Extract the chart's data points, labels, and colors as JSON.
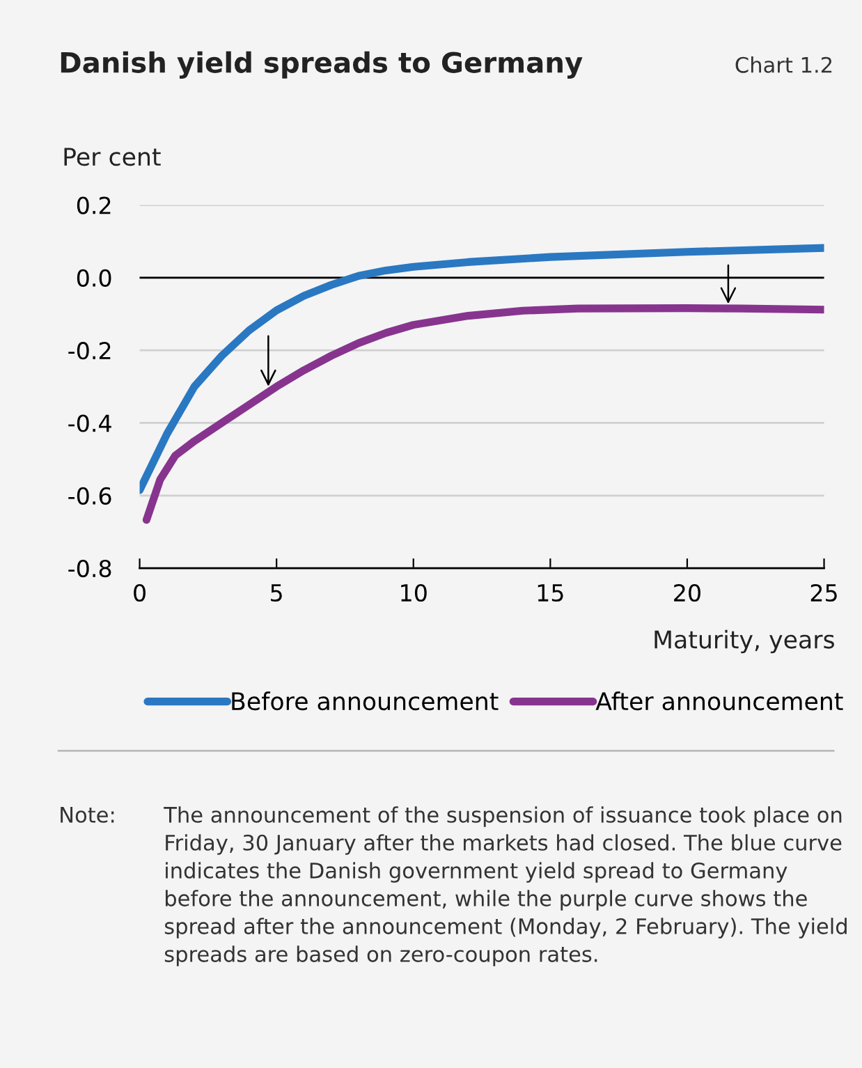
{
  "chart_data": {
    "type": "line",
    "title": "Danish yield spreads to Germany",
    "ylabel": "Per cent",
    "xlabel": "Maturity, years",
    "annotations": [
      "Chart 1.2",
      "Note: The announcement of the suspension of issuance took place on Friday, 30 January after the markets had closed. The blue curve indicates the Danish government yield spread to Germany before the announcement, while the purple curve shows the spread after the announcement (Monday, 2 February). The yield spreads are based on zero-coupon rates."
    ],
    "xlim": [
      0,
      25
    ],
    "xticks": [
      0,
      5,
      10,
      15,
      20,
      25
    ],
    "ylim": [
      -0.8,
      0.2
    ],
    "yticks": [
      {
        "value": 0.2,
        "label": "0.2"
      },
      {
        "value": 0.0,
        "label": "0.0"
      },
      {
        "value": -0.2,
        "label": "-0.2"
      },
      {
        "value": -0.4,
        "label": "-0.4"
      },
      {
        "value": -0.6,
        "label": "-0.6"
      },
      {
        "value": -0.8,
        "label": "-0.8"
      }
    ],
    "grid": "y",
    "legend": "bottom",
    "marker": "none",
    "line_style": "solid",
    "ref_lines": [
      {
        "axis": "y",
        "value": 0,
        "label": null,
        "color": "#000000"
      }
    ],
    "series": [
      {
        "name": "Before announcement",
        "color": "#2a78c2",
        "x": [
          0,
          1,
          2,
          3,
          4,
          5,
          6,
          7,
          8,
          9,
          10,
          12,
          15,
          20,
          25
        ],
        "values": [
          -0.585,
          -0.43,
          -0.3,
          -0.215,
          -0.145,
          -0.09,
          -0.05,
          -0.02,
          0.005,
          0.02,
          0.03,
          0.043,
          0.057,
          0.071,
          0.082
        ]
      },
      {
        "name": "After announcement",
        "color": "#87348f",
        "x": [
          0.25,
          0.75,
          1.3,
          2,
          3,
          4,
          5,
          6,
          7,
          8,
          9,
          10,
          12,
          14,
          16,
          20,
          22,
          25
        ],
        "values": [
          -0.667,
          -0.556,
          -0.49,
          -0.45,
          -0.4,
          -0.35,
          -0.3,
          -0.255,
          -0.215,
          -0.18,
          -0.152,
          -0.13,
          -0.105,
          -0.091,
          -0.085,
          -0.084,
          -0.085,
          -0.088
        ]
      }
    ]
  }
}
